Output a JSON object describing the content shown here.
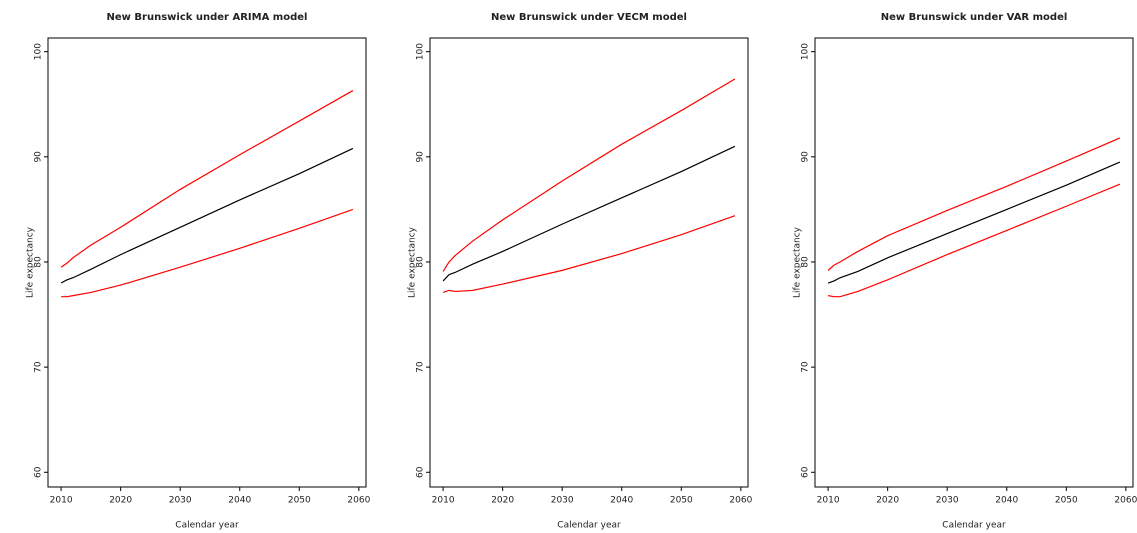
{
  "chart_data": [
    {
      "type": "line",
      "title": "New Brunswick under ARIMA model",
      "xlabel": "Calendar year",
      "ylabel": "Life expectancy",
      "x": [
        2010,
        2011,
        2012,
        2015,
        2020,
        2030,
        2040,
        2050,
        2059
      ],
      "series": [
        {
          "color": "#ff0000",
          "values": [
            79.5,
            79.9,
            80.4,
            81.6,
            83.3,
            86.9,
            90.2,
            93.4,
            96.3
          ]
        },
        {
          "color": "#000000",
          "values": [
            78.0,
            78.3,
            78.5,
            79.3,
            80.7,
            83.3,
            85.9,
            88.4,
            90.8
          ]
        },
        {
          "color": "#ff0000",
          "values": [
            76.7,
            76.7,
            76.8,
            77.1,
            77.8,
            79.5,
            81.3,
            83.2,
            85.0
          ]
        }
      ],
      "xlim": [
        2007.8,
        2061.2
      ],
      "ylim": [
        58.6,
        101.3
      ],
      "xticks": [
        2010,
        2020,
        2030,
        2040,
        2050,
        2060
      ],
      "yticks": [
        60,
        70,
        80,
        90,
        100
      ]
    },
    {
      "type": "line",
      "title": "New Brunswick under VECM model",
      "xlabel": "Calendar year",
      "ylabel": "Life expectancy",
      "x": [
        2010,
        2011,
        2012,
        2015,
        2020,
        2030,
        2040,
        2050,
        2059
      ],
      "series": [
        {
          "color": "#ff0000",
          "values": [
            79.1,
            80.0,
            80.6,
            82.0,
            84.0,
            87.7,
            91.2,
            94.4,
            97.4
          ]
        },
        {
          "color": "#000000",
          "values": [
            78.2,
            78.8,
            79.0,
            79.8,
            81.0,
            83.6,
            86.1,
            88.6,
            91.0
          ]
        },
        {
          "color": "#ff0000",
          "values": [
            77.1,
            77.3,
            77.2,
            77.3,
            77.9,
            79.2,
            80.8,
            82.6,
            84.4
          ]
        }
      ],
      "xlim": [
        2007.8,
        2061.2
      ],
      "ylim": [
        58.6,
        101.3
      ],
      "xticks": [
        2010,
        2020,
        2030,
        2040,
        2050,
        2060
      ],
      "yticks": [
        60,
        70,
        80,
        90,
        100
      ]
    },
    {
      "type": "line",
      "title": "New Brunswick under VAR model",
      "xlabel": "Calendar year",
      "ylabel": "Life expectancy",
      "x": [
        2010,
        2011,
        2012,
        2015,
        2020,
        2030,
        2040,
        2050,
        2059
      ],
      "series": [
        {
          "color": "#ff0000",
          "values": [
            79.2,
            79.7,
            80.0,
            81.0,
            82.5,
            84.9,
            87.2,
            89.6,
            91.8
          ]
        },
        {
          "color": "#000000",
          "values": [
            78.0,
            78.2,
            78.5,
            79.1,
            80.4,
            82.7,
            85.0,
            87.3,
            89.5
          ]
        },
        {
          "color": "#ff0000",
          "values": [
            76.8,
            76.7,
            76.7,
            77.2,
            78.3,
            80.7,
            83.0,
            85.3,
            87.4
          ]
        }
      ],
      "xlim": [
        2007.8,
        2061.2
      ],
      "ylim": [
        58.6,
        101.3
      ],
      "xticks": [
        2010,
        2020,
        2030,
        2040,
        2050,
        2060
      ],
      "yticks": [
        60,
        70,
        80,
        90,
        100
      ]
    }
  ]
}
